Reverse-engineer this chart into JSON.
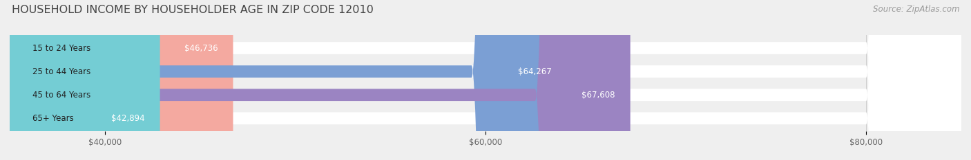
{
  "title": "HOUSEHOLD INCOME BY HOUSEHOLDER AGE IN ZIP CODE 12010",
  "source": "Source: ZipAtlas.com",
  "categories": [
    "15 to 24 Years",
    "25 to 44 Years",
    "45 to 64 Years",
    "65+ Years"
  ],
  "values": [
    46736,
    64267,
    67608,
    42894
  ],
  "bar_colors": [
    "#f4a9a0",
    "#7b9fd4",
    "#9b84c2",
    "#74cdd4"
  ],
  "bar_labels": [
    "$46,736",
    "$64,267",
    "$67,608",
    "$42,894"
  ],
  "xmin": 35000,
  "xmax": 85000,
  "xticks": [
    40000,
    60000,
    80000
  ],
  "xtick_labels": [
    "$40,000",
    "$60,000",
    "$80,000"
  ],
  "background_color": "#efefef",
  "title_fontsize": 11.5,
  "source_fontsize": 8.5,
  "label_fontsize": 8.5,
  "category_fontsize": 8.5
}
